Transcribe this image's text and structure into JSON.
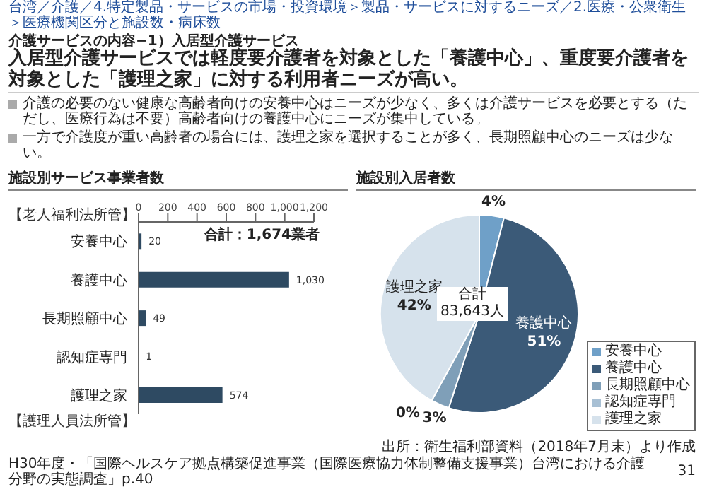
{
  "chart_data": [
    {
      "type": "bar",
      "orientation": "horizontal",
      "title": "施設別サービス事業者数",
      "categories": [
        "安養中心",
        "養護中心",
        "長期照顧中心",
        "認知症専門",
        "護理之家"
      ],
      "values": [
        20,
        1030,
        49,
        1,
        574
      ],
      "color": "#2e4a62",
      "value_labels": [
        "20",
        "1,030",
        "49",
        "1",
        "574"
      ],
      "xlim": [
        0,
        1200
      ],
      "xticks": [
        0,
        200,
        400,
        600,
        800,
        {
          "value": 1000,
          "label": "1,000"
        },
        {
          "value": 1200,
          "label": "1,200"
        }
      ],
      "annotations": [
        "台湾／介護／4.特定製品・サービスの市場・投資環境＞製品・サービスに対するニーズ／2.医療・公衆衛生＞医療機関区分と施設数・病床数",
        "介護サービスの内容−1）入居型介護サービス",
        "入居型介護サービスでは軽度要介護者を対象とした「養護中心」、重度要介護者を対象とした「護理之家」に対する利用者ニーズが高い。",
        "介護の必要のない健康な高齢者向けの安養中心はニーズが少なく、多くは介護サービスを必要とする（ただし、医療行為は不要）高齢者向けの養護中心にニーズが集中している。",
        "一方で介護度が重い高齢者の場合には、護理之家を選択することが多く、長期照顧中心のニーズは少ない。",
        "合計：1,674業者",
        "【老人福利法所管】",
        "【護理人員法所管】"
      ]
    },
    {
      "type": "pie",
      "title": "施設別入居者数",
      "categories": [
        "安養中心",
        "養護中心",
        "長期照顧中心",
        "認知症専門",
        "護理之家"
      ],
      "values": [
        4,
        51,
        3,
        0,
        42
      ],
      "colors": [
        "#6fa0c8",
        "#3b5a78",
        "#7f9fb8",
        "#a8c0d4",
        "#d6e2ec"
      ],
      "value_labels": [
        "4%",
        "51%",
        "3%",
        "0%",
        "42%"
      ],
      "legend": "bottom right",
      "annotations": [
        "合計\n83,643人",
        "出所：衛生福利部資料（2018年7月末）より作成",
        "H30年度・「国際ヘルスケア拠点構築促進事業（国際医療協力体制整備支援事業）台湾における介護分野の実態調査」p.40",
        "31"
      ]
    }
  ]
}
